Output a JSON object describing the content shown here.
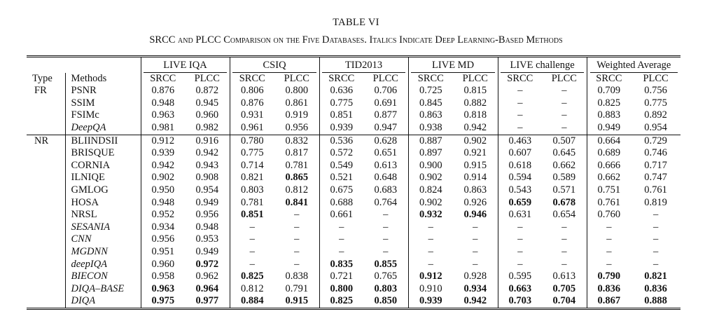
{
  "title": "TABLE VI",
  "caption": {
    "prefix_cap1": "S",
    "prefix_rest1": "RCC AND ",
    "plcc_cap": "PLCC",
    "mid": " C",
    "text": "SRCC and PLCC Comparison on the Five Databases. Italics Indicate Deep Learning-Based Methods"
  },
  "header": {
    "type": "Type",
    "methods": "Methods",
    "groups": [
      "LIVE IQA",
      "CSIQ",
      "TID2013",
      "LIVE MD",
      "LIVE challenge",
      "Weighted Average"
    ],
    "sub": [
      "SRCC",
      "PLCC"
    ]
  },
  "fr_rows": [
    {
      "type": "FR",
      "method": "PSNR",
      "italic": false,
      "vals": [
        "0.876",
        "0.872",
        "0.806",
        "0.800",
        "0.636",
        "0.706",
        "0.725",
        "0.815",
        "–",
        "–",
        "0.709",
        "0.756"
      ],
      "bold": []
    },
    {
      "type": "",
      "method": "SSIM",
      "italic": false,
      "vals": [
        "0.948",
        "0.945",
        "0.876",
        "0.861",
        "0.775",
        "0.691",
        "0.845",
        "0.882",
        "–",
        "–",
        "0.825",
        "0.775"
      ],
      "bold": []
    },
    {
      "type": "",
      "method": "FSIMc",
      "italic": false,
      "vals": [
        "0.963",
        "0.960",
        "0.931",
        "0.919",
        "0.851",
        "0.877",
        "0.863",
        "0.818",
        "–",
        "–",
        "0.883",
        "0.892"
      ],
      "bold": []
    },
    {
      "type": "",
      "method": "DeepQA",
      "italic": true,
      "vals": [
        "0.981",
        "0.982",
        "0.961",
        "0.956",
        "0.939",
        "0.947",
        "0.938",
        "0.942",
        "–",
        "–",
        "0.949",
        "0.954"
      ],
      "bold": []
    }
  ],
  "nr_rows": [
    {
      "type": "NR",
      "method": "BLIINDSII",
      "italic": false,
      "vals": [
        "0.912",
        "0.916",
        "0.780",
        "0.832",
        "0.536",
        "0.628",
        "0.887",
        "0.902",
        "0.463",
        "0.507",
        "0.664",
        "0.729"
      ],
      "bold": []
    },
    {
      "type": "",
      "method": "BRISQUE",
      "italic": false,
      "vals": [
        "0.939",
        "0.942",
        "0.775",
        "0.817",
        "0.572",
        "0.651",
        "0.897",
        "0.921",
        "0.607",
        "0.645",
        "0.689",
        "0.746"
      ],
      "bold": []
    },
    {
      "type": "",
      "method": "CORNIA",
      "italic": false,
      "vals": [
        "0.942",
        "0.943",
        "0.714",
        "0.781",
        "0.549",
        "0.613",
        "0.900",
        "0.915",
        "0.618",
        "0.662",
        "0.666",
        "0.717"
      ],
      "bold": []
    },
    {
      "type": "",
      "method": "ILNIQE",
      "italic": false,
      "vals": [
        "0.902",
        "0.908",
        "0.821",
        "0.865",
        "0.521",
        "0.648",
        "0.902",
        "0.914",
        "0.594",
        "0.589",
        "0.662",
        "0.747"
      ],
      "bold": [
        3
      ]
    },
    {
      "type": "",
      "method": "GMLOG",
      "italic": false,
      "vals": [
        "0.950",
        "0.954",
        "0.803",
        "0.812",
        "0.675",
        "0.683",
        "0.824",
        "0.863",
        "0.543",
        "0.571",
        "0.751",
        "0.761"
      ],
      "bold": []
    },
    {
      "type": "",
      "method": "HOSA",
      "italic": false,
      "vals": [
        "0.948",
        "0.949",
        "0.781",
        "0.841",
        "0.688",
        "0.764",
        "0.902",
        "0.926",
        "0.659",
        "0.678",
        "0.761",
        "0.819"
      ],
      "bold": [
        3,
        8,
        9
      ]
    },
    {
      "type": "",
      "method": "NRSL",
      "italic": false,
      "vals": [
        "0.952",
        "0.956",
        "0.851",
        "–",
        "0.661",
        "–",
        "0.932",
        "0.946",
        "0.631",
        "0.654",
        "0.760",
        "–"
      ],
      "bold": [
        2,
        6,
        7
      ]
    },
    {
      "type": "",
      "method": "SESANIA",
      "italic": true,
      "vals": [
        "0.934",
        "0.948",
        "–",
        "–",
        "–",
        "–",
        "–",
        "–",
        "–",
        "–",
        "–",
        "–"
      ],
      "bold": []
    },
    {
      "type": "",
      "method": "CNN",
      "italic": true,
      "vals": [
        "0.956",
        "0.953",
        "–",
        "–",
        "–",
        "–",
        "–",
        "–",
        "–",
        "–",
        "–",
        "–"
      ],
      "bold": []
    },
    {
      "type": "",
      "method": "MGDNN",
      "italic": true,
      "vals": [
        "0.951",
        "0.949",
        "–",
        "–",
        "–",
        "–",
        "–",
        "–",
        "–",
        "–",
        "–",
        "–"
      ],
      "bold": []
    },
    {
      "type": "",
      "method": "deepIQA",
      "italic": true,
      "vals": [
        "0.960",
        "0.972",
        "–",
        "–",
        "0.835",
        "0.855",
        "–",
        "–",
        "–",
        "–",
        "–",
        "–"
      ],
      "bold": [
        1,
        4,
        5
      ]
    },
    {
      "type": "",
      "method": "BIECON",
      "italic": true,
      "vals": [
        "0.958",
        "0.962",
        "0.825",
        "0.838",
        "0.721",
        "0.765",
        "0.912",
        "0.928",
        "0.595",
        "0.613",
        "0.790",
        "0.821"
      ],
      "bold": [
        2,
        6,
        10,
        11
      ]
    },
    {
      "type": "",
      "method": "DIQA–BASE",
      "italic": true,
      "vals": [
        "0.963",
        "0.964",
        "0.812",
        "0.791",
        "0.800",
        "0.803",
        "0.910",
        "0.934",
        "0.663",
        "0.705",
        "0.836",
        "0.836"
      ],
      "bold": [
        0,
        1,
        4,
        5,
        7,
        8,
        9,
        10,
        11
      ]
    },
    {
      "type": "",
      "method": "DIQA",
      "italic": true,
      "vals": [
        "0.975",
        "0.977",
        "0.884",
        "0.915",
        "0.825",
        "0.850",
        "0.939",
        "0.942",
        "0.703",
        "0.704",
        "0.867",
        "0.888"
      ],
      "bold": [
        0,
        1,
        2,
        3,
        4,
        5,
        6,
        7,
        8,
        9,
        10,
        11
      ]
    }
  ]
}
